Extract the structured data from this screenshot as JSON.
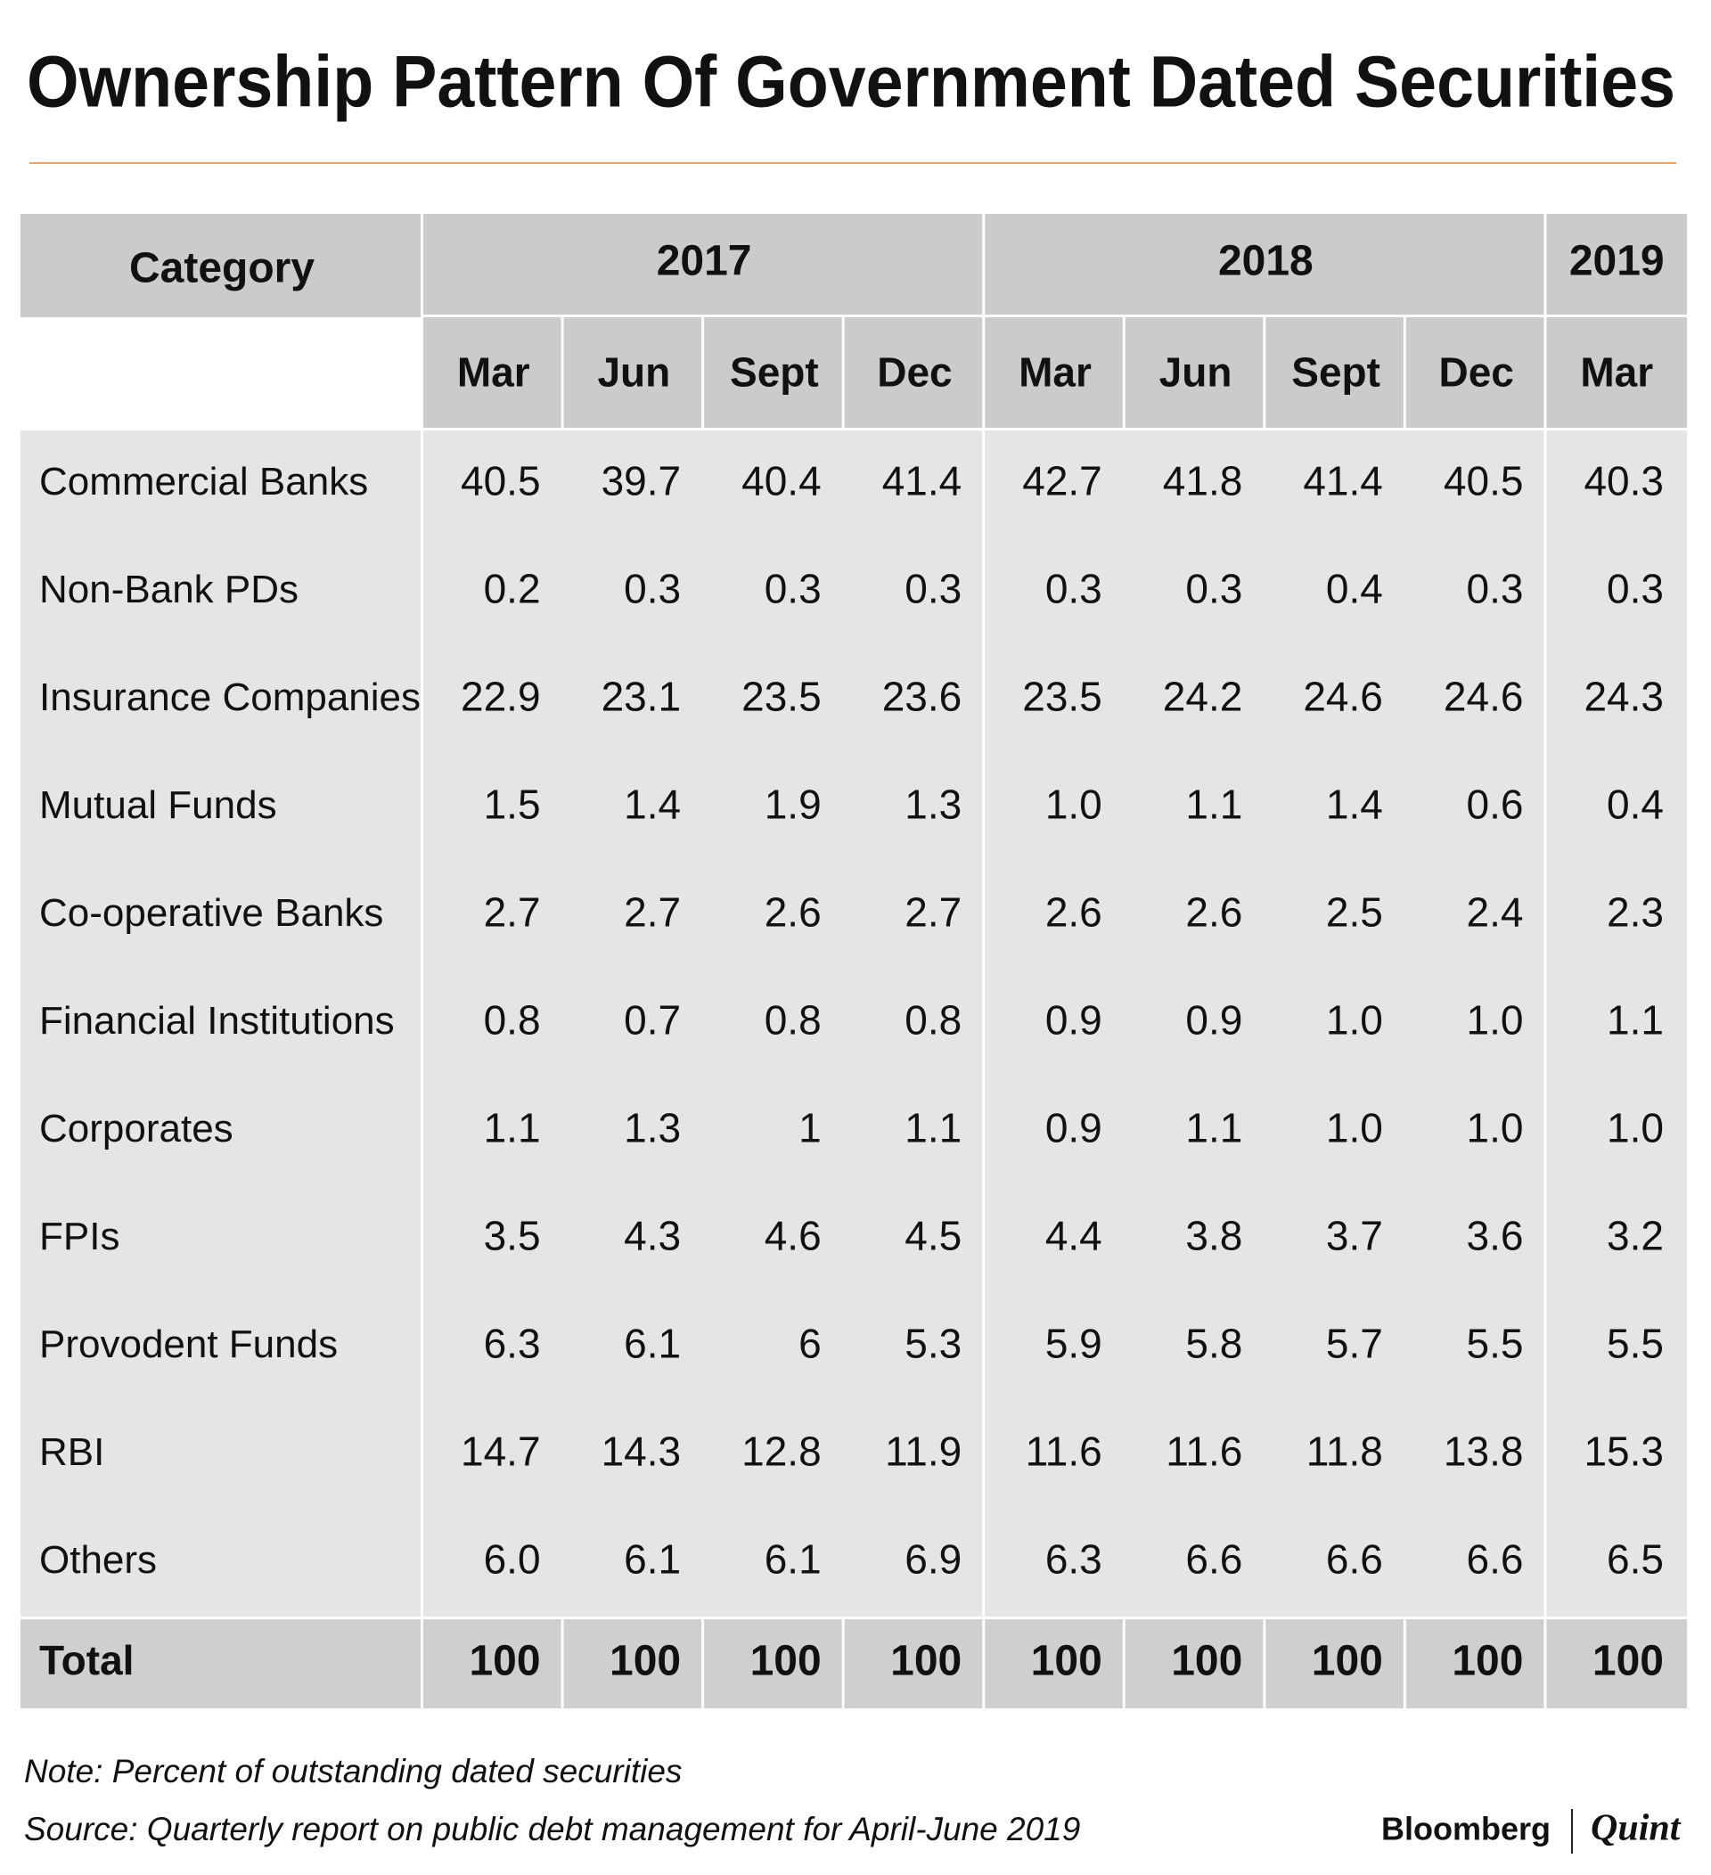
{
  "title": "Ownership Pattern Of Government Dated Securities",
  "table": {
    "header": {
      "category": "Category",
      "years": [
        {
          "label": "2017",
          "months": [
            "Mar",
            "Jun",
            "Sept",
            "Dec"
          ]
        },
        {
          "label": "2018",
          "months": [
            "Mar",
            "Jun",
            "Sept",
            "Dec"
          ]
        },
        {
          "label": "2019",
          "months": [
            "Mar"
          ]
        }
      ]
    },
    "rows": [
      [
        "Commercial Banks",
        "40.5",
        "39.7",
        "40.4",
        "41.4",
        "42.7",
        "41.8",
        "41.4",
        "40.5",
        "40.3"
      ],
      [
        "Non-Bank PDs",
        "0.2",
        "0.3",
        "0.3",
        "0.3",
        "0.3",
        "0.3",
        "0.4",
        "0.3",
        "0.3"
      ],
      [
        "Insurance Companies",
        "22.9",
        "23.1",
        "23.5",
        "23.6",
        "23.5",
        "24.2",
        "24.6",
        "24.6",
        "24.3"
      ],
      [
        "Mutual Funds",
        "1.5",
        "1.4",
        "1.9",
        "1.3",
        "1.0",
        "1.1",
        "1.4",
        "0.6",
        "0.4"
      ],
      [
        "Co-operative Banks",
        "2.7",
        "2.7",
        "2.6",
        "2.7",
        "2.6",
        "2.6",
        "2.5",
        "2.4",
        "2.3"
      ],
      [
        "Financial Institutions",
        "0.8",
        "0.7",
        "0.8",
        "0.8",
        "0.9",
        "0.9",
        "1.0",
        "1.0",
        "1.1"
      ],
      [
        "Corporates",
        "1.1",
        "1.3",
        "1",
        "1.1",
        "0.9",
        "1.1",
        "1.0",
        "1.0",
        "1.0"
      ],
      [
        "FPIs",
        "3.5",
        "4.3",
        "4.6",
        "4.5",
        "4.4",
        "3.8",
        "3.7",
        "3.6",
        "3.2"
      ],
      [
        "Provodent Funds",
        "6.3",
        "6.1",
        "6",
        "5.3",
        "5.9",
        "5.8",
        "5.7",
        "5.5",
        "5.5"
      ],
      [
        "RBI",
        "14.7",
        "14.3",
        "12.8",
        "11.9",
        "11.6",
        "11.6",
        "11.8",
        "13.8",
        "15.3"
      ],
      [
        "Others",
        "6.0",
        "6.1",
        "6.1",
        "6.9",
        "6.3",
        "6.6",
        "6.6",
        "6.6",
        "6.5"
      ]
    ],
    "total": [
      "Total",
      "100",
      "100",
      "100",
      "100",
      "100",
      "100",
      "100",
      "100",
      "100"
    ]
  },
  "note": "Note: Percent of outstanding dated securities",
  "source": "Source: Quarterly report on public debt management for April-June 2019",
  "logo": {
    "left": "Bloomberg",
    "right": "Quint"
  }
}
